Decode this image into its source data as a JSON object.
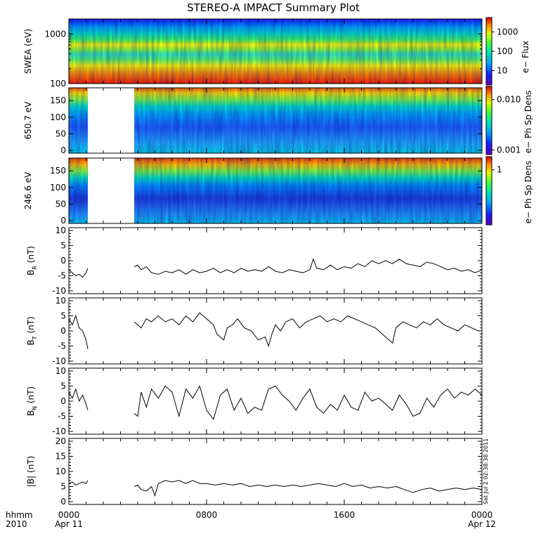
{
  "chart_data": {
    "type": "line",
    "title": "STEREO-A IMPACT Summary Plot",
    "x_axis": {
      "unit_label_line1": "hhmm",
      "unit_label_line2": "2010",
      "ticks": [
        {
          "t": 0,
          "label": "0000",
          "date": "Apr 11"
        },
        {
          "t": 8,
          "label": "0800",
          "date": ""
        },
        {
          "t": 16,
          "label": "1600",
          "date": ""
        },
        {
          "t": 24,
          "label": "0000",
          "date": "Apr 12"
        }
      ],
      "range_hours": [
        0,
        24
      ]
    },
    "data_gap_hours": [
      1.1,
      3.8
    ],
    "spectrograms": [
      {
        "ylabel": "SWEA (eV)",
        "yscale": "log",
        "ylim": [
          100,
          2000
        ],
        "yticks": [
          "1000",
          "100"
        ],
        "colorbar_label": "e− Flux",
        "colorbar_ticks": [
          "1000",
          "100",
          "10"
        ],
        "has_gap": false
      },
      {
        "ylabel": "650.7 eV",
        "yscale": "linear",
        "ylim": [
          0,
          180
        ],
        "yticks": [
          "150",
          "100",
          "50",
          "0"
        ],
        "colorbar_label": "e− Ph Sp Dens",
        "colorbar_ticks": [
          "0.010",
          "0.001"
        ],
        "has_gap": true
      },
      {
        "ylabel": "246.6 eV",
        "yscale": "linear",
        "ylim": [
          0,
          180
        ],
        "yticks": [
          "150",
          "100",
          "50",
          "0"
        ],
        "colorbar_label": "e− Ph Sp Dens",
        "colorbar_ticks": [
          "1"
        ],
        "has_gap": true
      }
    ],
    "series": [
      {
        "name": "BR",
        "ylabel_main": "B",
        "ylabel_sub": "R",
        "ylabel_unit": " (nT)",
        "ylim": [
          -10,
          10
        ],
        "yticks": [
          "10",
          "5",
          "0",
          "-5",
          "-10"
        ],
        "x": [
          0,
          0.2,
          0.4,
          0.6,
          0.8,
          1.0,
          1.1,
          3.8,
          4.0,
          4.2,
          4.5,
          4.8,
          5.2,
          5.6,
          6.0,
          6.4,
          6.8,
          7.2,
          7.6,
          8.0,
          8.4,
          8.8,
          9.2,
          9.6,
          10.0,
          10.4,
          10.8,
          11.2,
          11.6,
          12.0,
          12.4,
          12.8,
          13.2,
          13.6,
          14.0,
          14.2,
          14.4,
          14.8,
          15.2,
          15.6,
          16.0,
          16.4,
          16.8,
          17.2,
          17.6,
          18.0,
          18.4,
          18.8,
          19.2,
          19.6,
          20.0,
          20.4,
          20.8,
          21.2,
          21.6,
          22.0,
          22.4,
          22.8,
          23.2,
          23.6,
          24.0
        ],
        "y": [
          -3,
          -4,
          -5,
          -4.5,
          -5.5,
          -4,
          -2.5,
          -2,
          -1.5,
          -3,
          -2,
          -4,
          -4.5,
          -3.5,
          -4,
          -3,
          -4.5,
          -3,
          -4,
          -3.5,
          -2.5,
          -4,
          -3,
          -4,
          -2.5,
          -3.5,
          -3,
          -3.5,
          -2,
          -3.5,
          -4,
          -3,
          -3.5,
          -4,
          -3,
          0.5,
          -2.5,
          -3,
          -1.5,
          -3,
          -2,
          -2.5,
          -1,
          -2,
          0,
          -1,
          0,
          -1,
          0.5,
          -1,
          -1.5,
          -2,
          -0.5,
          -1,
          -2,
          -3,
          -2.5,
          -3.5,
          -3,
          -4,
          -3
        ]
      },
      {
        "name": "BT",
        "ylabel_main": "B",
        "ylabel_sub": "T",
        "ylabel_unit": " (nT)",
        "ylim": [
          -10,
          10
        ],
        "yticks": [
          "10",
          "5",
          "0",
          "-5",
          "-10"
        ],
        "x": [
          0,
          0.2,
          0.4,
          0.6,
          0.8,
          1.0,
          1.1,
          3.8,
          4.0,
          4.2,
          4.5,
          4.8,
          5.2,
          5.6,
          6.0,
          6.4,
          6.8,
          7.2,
          7.6,
          8.0,
          8.4,
          8.6,
          8.8,
          9.0,
          9.2,
          9.5,
          9.8,
          10.2,
          10.6,
          11.0,
          11.4,
          11.6,
          11.8,
          12.0,
          12.3,
          12.6,
          13.0,
          13.4,
          13.8,
          14.2,
          14.6,
          15.0,
          15.4,
          15.8,
          16.2,
          16.6,
          17.0,
          17.4,
          17.8,
          18.2,
          18.6,
          18.8,
          19.0,
          19.4,
          19.8,
          20.2,
          20.6,
          21.0,
          21.4,
          21.8,
          22.2,
          22.6,
          23.0,
          23.4,
          23.8,
          24.0
        ],
        "y": [
          4,
          2,
          5,
          1,
          0,
          -3,
          -6,
          3,
          2,
          1,
          4,
          3,
          5,
          3,
          4,
          2,
          5,
          3,
          6,
          4,
          2,
          -1,
          -2,
          -3,
          1,
          2,
          4,
          1,
          0,
          -3,
          -2,
          -5,
          -1,
          2,
          0,
          3,
          4,
          1,
          3,
          4,
          5,
          3,
          4,
          3,
          5,
          4,
          3,
          2,
          1,
          -1,
          -3,
          -4,
          1,
          3,
          2,
          1,
          3,
          2,
          4,
          2,
          1,
          0,
          2,
          1,
          0,
          0
        ]
      },
      {
        "name": "BN",
        "ylabel_main": "B",
        "ylabel_sub": "N",
        "ylabel_unit": " (nT)",
        "ylim": [
          -10,
          10
        ],
        "yticks": [
          "10",
          "5",
          "0",
          "-5",
          "-10"
        ],
        "x": [
          0,
          0.2,
          0.4,
          0.6,
          0.8,
          1.0,
          1.1,
          3.8,
          4.0,
          4.2,
          4.5,
          4.8,
          5.2,
          5.6,
          6.0,
          6.4,
          6.8,
          7.2,
          7.6,
          8.0,
          8.4,
          8.8,
          9.2,
          9.6,
          10.0,
          10.4,
          10.8,
          11.2,
          11.6,
          12.0,
          12.4,
          12.8,
          13.2,
          13.6,
          14.0,
          14.4,
          14.8,
          15.2,
          15.6,
          16.0,
          16.4,
          16.8,
          17.2,
          17.6,
          18.0,
          18.4,
          18.8,
          19.2,
          19.6,
          20.0,
          20.4,
          20.8,
          21.2,
          21.6,
          22.0,
          22.4,
          22.8,
          23.2,
          23.6,
          24.0
        ],
        "y": [
          3,
          1,
          4,
          0,
          2,
          -1,
          -3,
          -4,
          -5,
          3,
          -2,
          4,
          1,
          5,
          3,
          -5,
          4,
          1,
          5,
          -3,
          -6,
          2,
          4,
          -3,
          1,
          -4,
          -2,
          -3,
          4,
          5,
          2,
          0,
          -3,
          1,
          4,
          -2,
          -4,
          -1,
          -3,
          2,
          -2,
          -3,
          3,
          0,
          1,
          -1,
          -3,
          2,
          -1,
          -5,
          -4,
          1,
          -2,
          2,
          4,
          1,
          3,
          2,
          4,
          2
        ]
      },
      {
        "name": "|B|",
        "ylabel_main": "|B|",
        "ylabel_sub": "",
        "ylabel_unit": " (nT)",
        "ylim": [
          0,
          20
        ],
        "yticks": [
          "20",
          "15",
          "10",
          "5",
          "0"
        ],
        "x": [
          0,
          0.2,
          0.4,
          0.6,
          0.8,
          1.0,
          1.1,
          3.8,
          4.0,
          4.2,
          4.5,
          4.8,
          5.0,
          5.2,
          5.6,
          6.0,
          6.4,
          6.8,
          7.2,
          7.6,
          8.0,
          8.5,
          9.0,
          9.5,
          10.0,
          10.5,
          11.0,
          11.5,
          12.0,
          12.5,
          13.0,
          13.5,
          14.0,
          14.5,
          15.0,
          15.5,
          16.0,
          16.5,
          17.0,
          17.5,
          18.0,
          18.5,
          19.0,
          19.5,
          20.0,
          20.5,
          21.0,
          21.5,
          22.0,
          22.5,
          23.0,
          23.5,
          24.0
        ],
        "y": [
          6,
          6.5,
          5.5,
          6,
          6.5,
          6,
          7,
          5,
          5.5,
          4,
          3.5,
          5,
          2,
          6,
          7,
          6.5,
          7,
          6,
          7,
          6,
          6,
          5.5,
          6,
          5.5,
          6,
          5,
          5.5,
          5,
          5.5,
          5,
          5.5,
          5,
          5.5,
          6,
          5.5,
          5,
          6,
          5,
          5.5,
          4.5,
          5,
          4.5,
          5,
          4,
          3,
          4,
          4.5,
          3.5,
          4,
          4.5,
          4,
          4.5,
          4
        ]
      }
    ]
  },
  "timestamp": "Sat Jul  2 02:38:38 2011"
}
